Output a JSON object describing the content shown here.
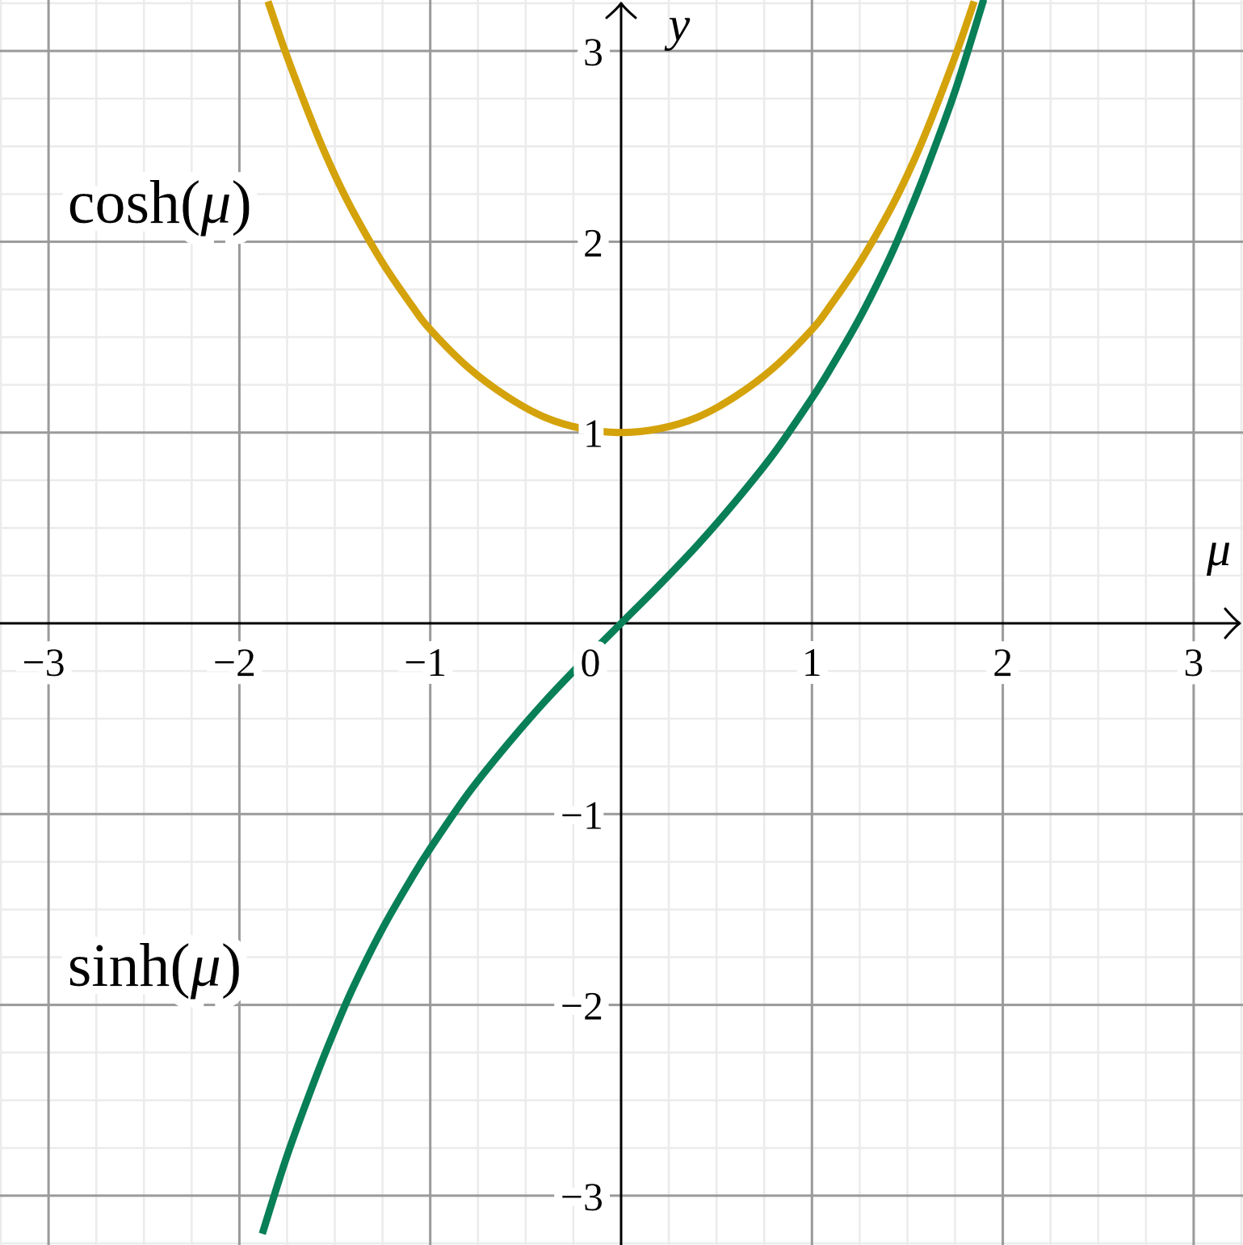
{
  "chart_data": {
    "type": "line",
    "xlabel": "μ",
    "ylabel": "y",
    "xlim": [
      -3.25,
      3.25
    ],
    "ylim": [
      -3.25,
      3.25
    ],
    "x_ticks": [
      {
        "value": -3,
        "label": "−3"
      },
      {
        "value": -2,
        "label": "−2"
      },
      {
        "value": -1,
        "label": "−1"
      },
      {
        "value": 0,
        "label": "0"
      },
      {
        "value": 1,
        "label": "1"
      },
      {
        "value": 2,
        "label": "2"
      },
      {
        "value": 3,
        "label": "3"
      }
    ],
    "y_ticks": [
      {
        "value": -3,
        "label": "−3"
      },
      {
        "value": -2,
        "label": "−2"
      },
      {
        "value": -1,
        "label": "−1"
      },
      {
        "value": 1,
        "label": "1"
      },
      {
        "value": 2,
        "label": "2"
      },
      {
        "value": 3,
        "label": "3"
      }
    ],
    "grid": {
      "major_step": 1,
      "minor_step": 0.25
    },
    "colors": {
      "cosh": "#d4a20a",
      "sinh": "#087f56",
      "major_grid": "#9a9a9a",
      "minor_grid": "#ebebeb",
      "axis": "#000000"
    },
    "series": [
      {
        "key": "cosh",
        "name": "cosh(μ)",
        "label_parts": [
          "cosh(",
          "μ",
          ")"
        ],
        "label_anchor": [
          -2.9,
          2.1
        ],
        "x": [
          -1.85,
          -1.75,
          -1.6,
          -1.5,
          -1.4,
          -1.25,
          -1.1,
          -1.0,
          -0.8,
          -0.6,
          -0.4,
          -0.2,
          0,
          0.2,
          0.4,
          0.6,
          0.8,
          1.0,
          1.1,
          1.25,
          1.4,
          1.5,
          1.6,
          1.75,
          1.85
        ],
        "y": [
          3.26,
          2.97,
          2.58,
          2.35,
          2.15,
          1.89,
          1.67,
          1.54,
          1.34,
          1.19,
          1.08,
          1.02,
          1.0,
          1.02,
          1.08,
          1.19,
          1.34,
          1.54,
          1.67,
          1.89,
          2.15,
          2.35,
          2.58,
          2.97,
          3.26
        ]
      },
      {
        "key": "sinh",
        "name": "sinh(μ)",
        "label_parts": [
          "sinh(",
          "μ",
          ")"
        ],
        "label_anchor": [
          -2.9,
          -1.9
        ],
        "x": [
          -1.88,
          -1.75,
          -1.6,
          -1.5,
          -1.4,
          -1.25,
          -1.1,
          -1.0,
          -0.8,
          -0.6,
          -0.4,
          -0.2,
          0,
          0.2,
          0.4,
          0.6,
          0.8,
          1.0,
          1.1,
          1.25,
          1.4,
          1.5,
          1.6,
          1.75,
          1.9
        ],
        "y": [
          -3.2,
          -2.79,
          -2.38,
          -2.13,
          -1.9,
          -1.6,
          -1.34,
          -1.18,
          -0.89,
          -0.64,
          -0.41,
          -0.2,
          0,
          0.2,
          0.41,
          0.64,
          0.89,
          1.18,
          1.34,
          1.6,
          1.9,
          2.13,
          2.38,
          2.79,
          3.27
        ]
      }
    ]
  }
}
